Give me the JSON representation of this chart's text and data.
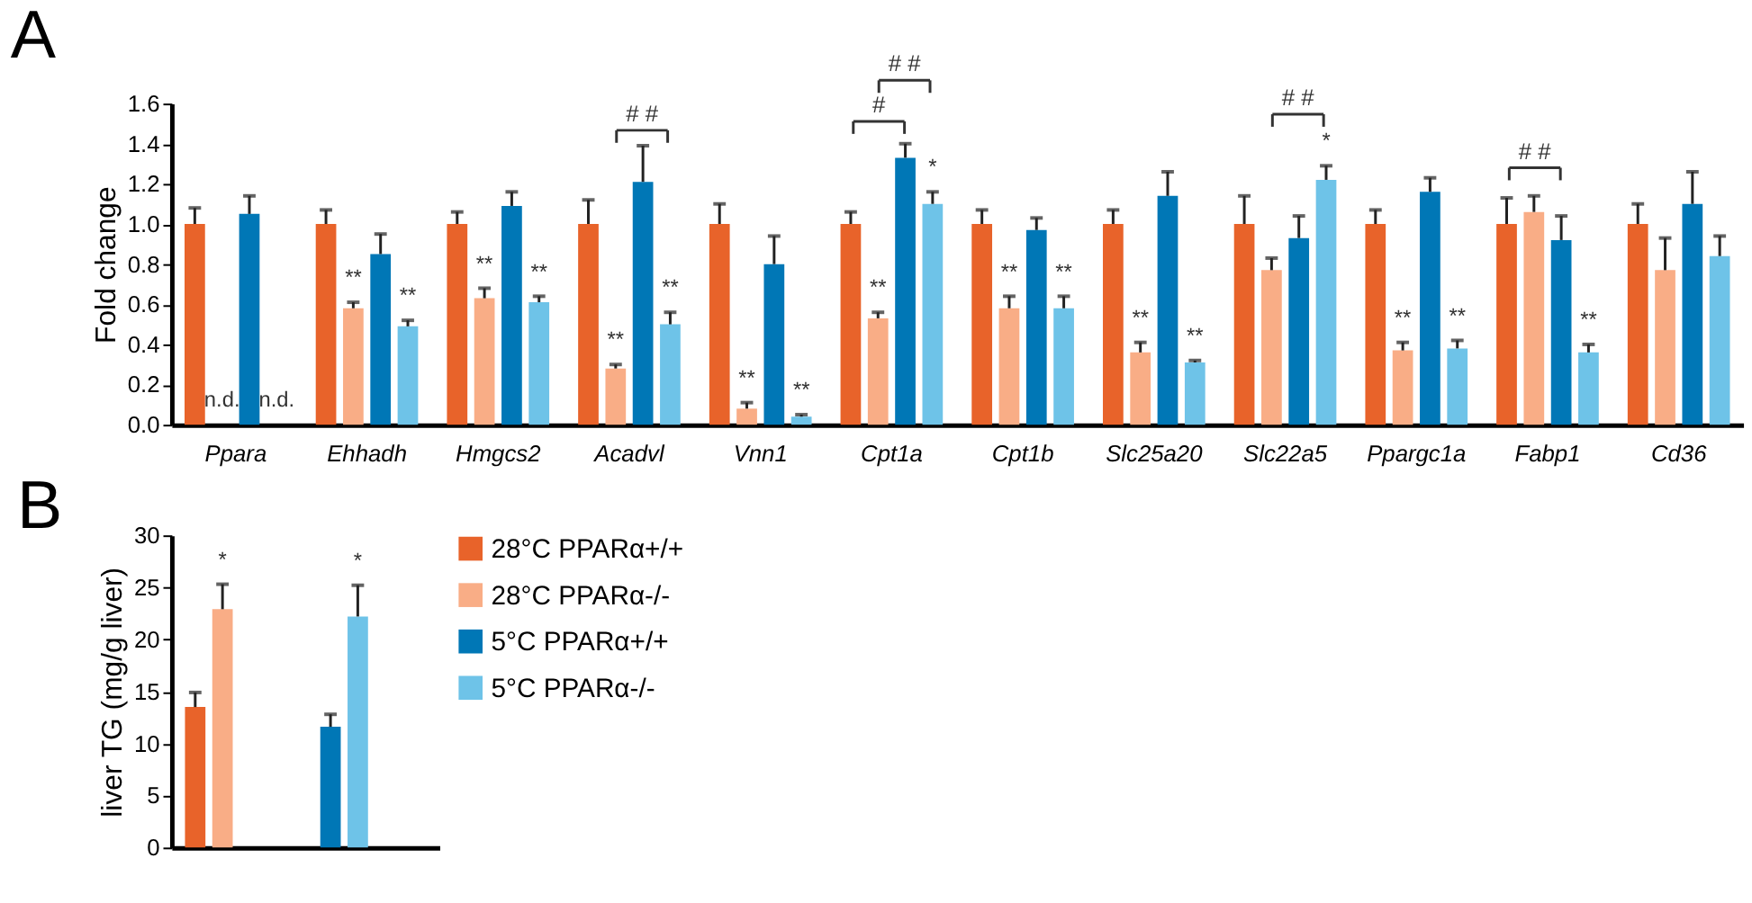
{
  "chart_data": [
    {
      "type": "bar",
      "title": "A",
      "ylabel": "Fold change",
      "categories": [
        "Ppara",
        "Ehhadh",
        "Hmgcs2",
        "Acadvl",
        "Vnn1",
        "Cpt1a",
        "Cpt1b",
        "Slc25a20",
        "Slc22a5",
        "Ppargc1a",
        "Fabp1",
        "Cd36"
      ],
      "ylim": [
        0,
        1.6
      ],
      "yticks": [
        {
          "value": 0,
          "label": "0.0"
        },
        0.2,
        0.4,
        0.6,
        0.8,
        {
          "value": 1,
          "label": "1.0"
        },
        1.2,
        1.4,
        1.6
      ],
      "grid": false,
      "legend": false,
      "series": [
        {
          "color": "#e8632a",
          "values": [
            1.0,
            1.0,
            1.0,
            1.0,
            1.0,
            1.0,
            1.0,
            1.0,
            1.0,
            1.0,
            1.0,
            1.0
          ],
          "errors": [
            0.08,
            0.07,
            0.06,
            0.12,
            0.1,
            0.06,
            0.07,
            0.07,
            0.14,
            0.07,
            0.13,
            0.1
          ]
        },
        {
          "color": "#f9ad86",
          "values": [
            null,
            0.58,
            0.63,
            0.28,
            0.08,
            0.53,
            0.58,
            0.36,
            0.77,
            0.37,
            1.06,
            0.77
          ],
          "errors": [
            null,
            0.03,
            0.05,
            0.02,
            0.03,
            0.03,
            0.06,
            0.05,
            0.06,
            0.04,
            0.08,
            0.16
          ],
          "value_labels": [
            "n.d.",
            "**",
            "**",
            "**",
            "**",
            "**",
            "**",
            "**",
            null,
            "**",
            null,
            null
          ]
        },
        {
          "color": "#0077b6",
          "values": [
            1.05,
            0.85,
            1.09,
            1.21,
            0.8,
            1.33,
            0.97,
            1.14,
            0.93,
            1.16,
            0.92,
            1.1
          ],
          "errors": [
            0.09,
            0.1,
            0.07,
            0.18,
            0.14,
            0.07,
            0.06,
            0.12,
            0.11,
            0.07,
            0.12,
            0.16
          ]
        },
        {
          "color": "#6ec3e8",
          "values": [
            null,
            0.49,
            0.61,
            0.5,
            0.04,
            1.1,
            0.58,
            0.31,
            1.22,
            0.38,
            0.36,
            0.84
          ],
          "errors": [
            null,
            0.03,
            0.03,
            0.06,
            0.01,
            0.06,
            0.06,
            0.01,
            0.07,
            0.04,
            0.04,
            0.1
          ],
          "value_labels": [
            "n.d.",
            "**",
            "**",
            "**",
            "**",
            "*",
            "**",
            "**",
            "*",
            "**",
            "**",
            null
          ]
        }
      ],
      "annotations": [
        "# #",
        "#",
        "# #",
        "# #",
        "# #"
      ]
    },
    {
      "type": "bar",
      "title": "B",
      "ylabel": "liver TG (mg/g liver)",
      "categories": [
        null,
        null
      ],
      "ylim": [
        0,
        30
      ],
      "yticks": [
        0,
        5,
        10,
        15,
        20,
        25,
        30
      ],
      "grid": false,
      "legend": "right",
      "series": [
        {
          "name": "28°C PPARα+/+",
          "color": "#e8632a",
          "values": [
            13.5,
            null
          ],
          "errors": [
            1.4,
            null
          ]
        },
        {
          "name": "28°C PPARα-/-",
          "color": "#f9ad86",
          "values": [
            22.9,
            null
          ],
          "errors": [
            2.4,
            null
          ],
          "value_labels": [
            "*",
            null
          ]
        },
        {
          "name": "5°C PPARα+/+",
          "color": "#0077b6",
          "values": [
            null,
            11.6
          ],
          "errors": [
            null,
            1.2
          ]
        },
        {
          "name": "5°C PPARα-/-",
          "color": "#6ec3e8",
          "values": [
            null,
            22.2
          ],
          "errors": [
            null,
            3.0
          ],
          "value_labels": [
            null,
            "*"
          ]
        }
      ]
    }
  ]
}
